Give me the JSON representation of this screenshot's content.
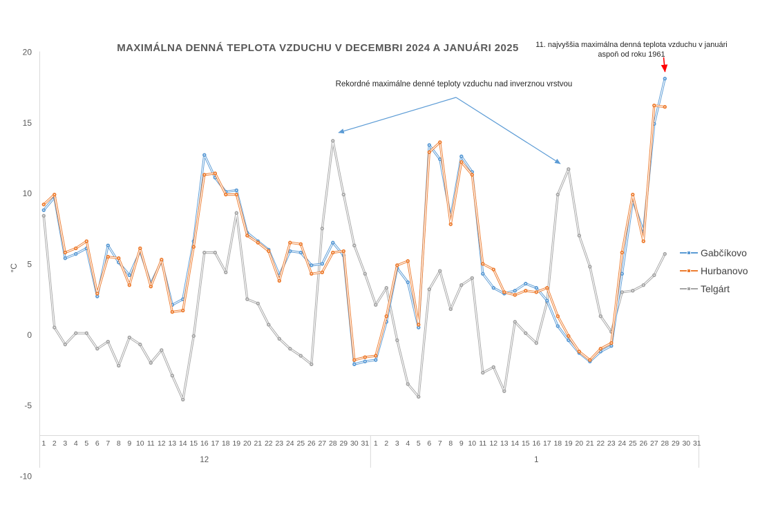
{
  "title": "MAXIMÁLNA DENNÁ TEPLOTA VZDUCHU V DECEMBRI 2024 A JANUÁRI 2025",
  "annotations": {
    "inversion_note": "Rekordné maximálne denné teploty vzduchu nad inverznou vrstvou",
    "january_record_line1": "11. najvyššia maximálna denná teplota vzduchu v januári",
    "january_record_line2": "aspoň od roku 1961"
  },
  "legend": {
    "items": [
      {
        "label": "Gabčíkovo",
        "color": "#5B9BD5"
      },
      {
        "label": "Hurbanovo",
        "color": "#ED7D31"
      },
      {
        "label": "Telgárt",
        "color": "#A5A5A5"
      }
    ]
  },
  "chart_data": {
    "type": "line",
    "title": "MAXIMÁLNA DENNÁ TEPLOTA VZDUCHU V DECEMBRI 2024 A JANUÁRI 2025",
    "ylabel": "°C",
    "ylim": [
      -10,
      20
    ],
    "y_ticks": [
      20,
      15,
      10,
      5,
      0,
      -5,
      -10
    ],
    "grid": false,
    "legend_position": "right",
    "x_groups": [
      {
        "month_label": "12",
        "days": [
          1,
          2,
          3,
          4,
          5,
          6,
          7,
          8,
          9,
          10,
          11,
          12,
          13,
          14,
          15,
          16,
          17,
          18,
          19,
          20,
          21,
          22,
          23,
          24,
          25,
          26,
          27,
          28,
          29,
          30,
          31
        ]
      },
      {
        "month_label": "1",
        "days": [
          1,
          2,
          3,
          4,
          5,
          6,
          7,
          8,
          9,
          10,
          11,
          12,
          13,
          14,
          15,
          16,
          17,
          18,
          19,
          20,
          21,
          22,
          23,
          24,
          25,
          26,
          27,
          28,
          29,
          30,
          31
        ]
      }
    ],
    "series": [
      {
        "name": "Gabčíkovo",
        "color": "#5B9BD5",
        "values_dec": [
          8.8,
          9.7,
          5.4,
          5.7,
          6.1,
          2.7,
          6.3,
          5.1,
          4.2,
          5.9,
          3.6,
          5.2,
          2.1,
          2.5,
          6.6,
          12.7,
          11.1,
          10.1,
          10.2,
          7.2,
          6.6,
          6.0,
          4.2,
          5.9,
          5.8,
          4.9,
          5.0,
          6.5,
          5.6,
          -2.1,
          -1.9
        ],
        "values_jan": [
          -1.8,
          0.9,
          4.7,
          3.7,
          0.5,
          13.4,
          12.4,
          8.3,
          12.6,
          11.5,
          4.3,
          3.3,
          2.9,
          3.1,
          3.6,
          3.3,
          2.4,
          0.6,
          -0.4,
          -1.3,
          -1.9,
          -1.2,
          -0.8,
          4.3,
          9.5,
          7.3,
          14.9,
          18.1
        ]
      },
      {
        "name": "Hurbanovo",
        "color": "#ED7D31",
        "values_dec": [
          9.2,
          9.9,
          5.8,
          6.1,
          6.6,
          2.9,
          5.5,
          5.4,
          3.5,
          6.1,
          3.4,
          5.3,
          1.6,
          1.7,
          6.2,
          11.3,
          11.4,
          9.9,
          9.9,
          7.0,
          6.5,
          5.9,
          3.8,
          6.5,
          6.4,
          4.3,
          4.4,
          5.8,
          5.9,
          -1.8,
          -1.6
        ],
        "values_jan": [
          -1.5,
          1.3,
          4.9,
          5.2,
          0.7,
          12.9,
          13.6,
          7.8,
          12.2,
          11.3,
          5.0,
          4.6,
          3.0,
          2.8,
          3.1,
          3.0,
          3.3,
          1.3,
          -0.1,
          -1.2,
          -1.8,
          -1.0,
          -0.6,
          5.8,
          9.9,
          6.6,
          16.2,
          16.1
        ]
      },
      {
        "name": "Telgárt",
        "color": "#A5A5A5",
        "values_dec": [
          8.4,
          0.5,
          -0.7,
          0.1,
          0.1,
          -1.0,
          -0.5,
          -2.2,
          -0.2,
          -0.7,
          -2.0,
          -1.1,
          -2.9,
          -4.6,
          -0.1,
          5.8,
          5.8,
          4.4,
          8.6,
          2.5,
          2.2,
          0.7,
          -0.3,
          -1.0,
          -1.5,
          -2.1,
          7.5,
          13.7,
          9.9,
          6.3,
          4.3
        ],
        "values_jan": [
          2.1,
          3.3,
          -0.4,
          -3.5,
          -4.4,
          3.2,
          4.5,
          1.8,
          3.5,
          4.0,
          -2.7,
          -2.3,
          -4.0,
          0.9,
          0.1,
          -0.6,
          2.3,
          9.9,
          11.7,
          7.0,
          4.8,
          1.3,
          0.2,
          3.0,
          3.1,
          3.5,
          4.2,
          5.7
        ]
      }
    ]
  }
}
